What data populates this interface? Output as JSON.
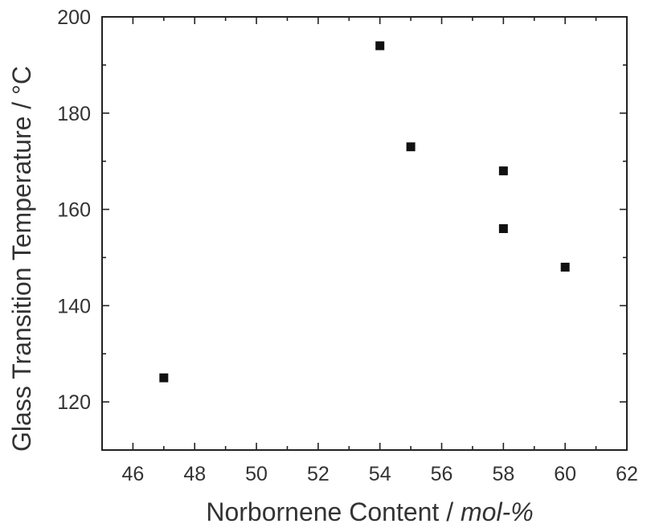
{
  "chart_data": {
    "type": "scatter",
    "title": "",
    "xlabel": {
      "main": "Norbornene Content / ",
      "unit": "mol-%"
    },
    "ylabel": "Glass Transition Temperature / °C",
    "xlim": [
      45,
      62
    ],
    "ylim": [
      110,
      200
    ],
    "x_ticks": [
      46,
      48,
      50,
      52,
      54,
      56,
      58,
      60,
      62
    ],
    "y_ticks": [
      120,
      140,
      160,
      180,
      200
    ],
    "grid": false,
    "legend": "none",
    "marker": "square",
    "marker_color": "#111111",
    "series": [
      {
        "points": [
          {
            "x": 47,
            "y": 125
          },
          {
            "x": 54,
            "y": 194
          },
          {
            "x": 55,
            "y": 173
          },
          {
            "x": 58,
            "y": 168
          },
          {
            "x": 58,
            "y": 156
          },
          {
            "x": 60,
            "y": 148
          }
        ]
      }
    ]
  }
}
